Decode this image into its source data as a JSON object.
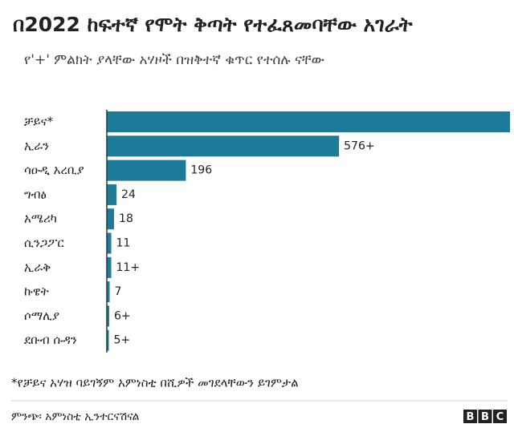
{
  "chart_data": {
    "type": "bar",
    "orientation": "horizontal",
    "title": "በ2022 ከፍተኛ የሞት ቅጣት የተፈጸመባቸው አገራት",
    "subtitle": "የ'+' ምልክት ያላቸው አሃዞች በዝቅተኛ ቁጥር የተሰሉ ናቸው",
    "categories": [
      "ቻይና*",
      "ኢራን",
      "ሳዑዲ አረቢያ",
      "ግብፅ",
      "አሜሪካ",
      "ሲንጋፖር",
      "ኢራቅ",
      "ኩዌት",
      "ሶማሊያ",
      "ደቡብ ሱዳን"
    ],
    "values": [
      1000,
      576,
      196,
      24,
      18,
      11,
      11,
      7,
      6,
      5
    ],
    "value_labels": [
      null,
      "576+",
      "196",
      "24",
      "18",
      "11",
      "11+",
      "7",
      "6+",
      "5+"
    ],
    "color": "#1d7a99",
    "xlim": [
      0,
      1000
    ],
    "footnote": "*የቻይና አሃዝ ባይገኝም አምነስቲ በሺዎች መገደላቸውን ይገምታል",
    "source": "ምንጭ፡ አምነስቲ ኢንተርናሽናል",
    "logo": [
      "B",
      "B",
      "C"
    ]
  }
}
